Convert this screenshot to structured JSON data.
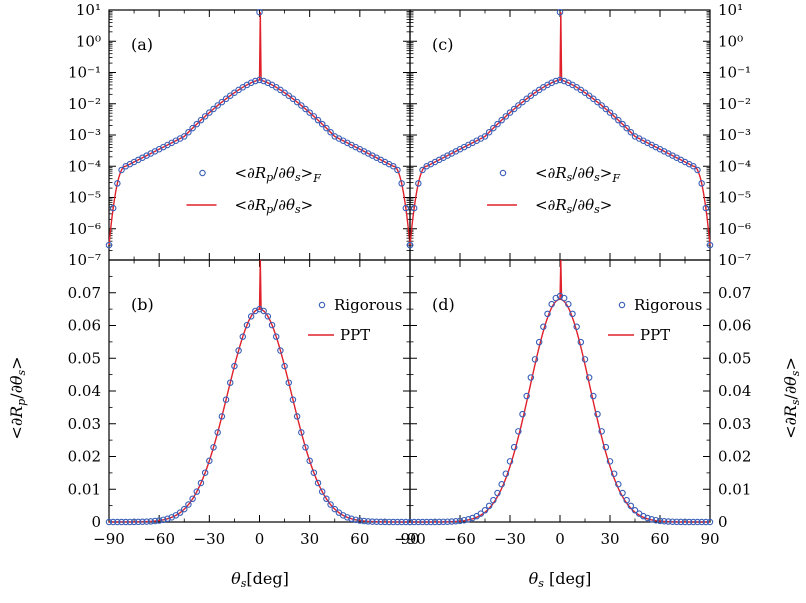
{
  "colors": {
    "rigorous": "#3a5fb8",
    "ppt": "#e0202a",
    "axis": "#000000"
  },
  "chart_data": [
    {
      "type": "scatter",
      "id": "a",
      "panel_label": "(a)",
      "yscale": "log",
      "xlim": [
        -90,
        90
      ],
      "ylim_exponents": [
        -7,
        1
      ],
      "ytick_labels": [
        "10¹",
        "10⁰",
        "10⁻¹",
        "10⁻²",
        "10⁻³",
        "10⁻⁴",
        "10⁻⁵",
        "10⁻⁶",
        "10⁻⁷"
      ],
      "legend": [
        "<∂Rp/∂θs>F",
        "<∂Rp/∂θs>"
      ],
      "legend_position": "lower-center",
      "specular": {
        "x": 0,
        "y": 8.5
      },
      "series": [
        {
          "name": "<∂Rp/∂θs>F",
          "kind": "markers",
          "model": "log-profile",
          "y_at_0": 0.058,
          "y_at_45": 0.0009,
          "y_at_80": 0.0001,
          "y_at_90": 3e-07
        },
        {
          "name": "<∂Rp/∂θs>",
          "kind": "line",
          "model": "log-profile",
          "y_at_0": 0.058,
          "y_at_45": 0.0009,
          "y_at_80": 0.0001,
          "y_at_90": 3e-07
        }
      ]
    },
    {
      "type": "scatter",
      "id": "b",
      "panel_label": "(b)",
      "yscale": "linear",
      "xlim": [
        -90,
        90
      ],
      "ylim": [
        0,
        0.08
      ],
      "yticks": [
        0,
        0.01,
        0.02,
        0.03,
        0.04,
        0.05,
        0.06,
        0.07
      ],
      "ytick_labels": [
        "0",
        "0.01",
        "0.02",
        "0.03",
        "0.04",
        "0.05",
        "0.06",
        "0.07"
      ],
      "xticks": [
        -90,
        -60,
        -30,
        0,
        30,
        60,
        90
      ],
      "xtick_labels": [
        "−90",
        "−60",
        "−30",
        "0",
        "30",
        "60",
        "90"
      ],
      "legend": [
        "Rigorous",
        "PPT"
      ],
      "legend_position": "upper-right",
      "specular": {
        "x": 0,
        "y": 0.08
      },
      "series": [
        {
          "name": "Rigorous",
          "kind": "markers",
          "model": "gaussian",
          "peak": 0.065,
          "sigma_deg": 19
        },
        {
          "name": "PPT",
          "kind": "line",
          "model": "gaussian",
          "peak": 0.065,
          "sigma_deg": 19
        }
      ]
    },
    {
      "type": "scatter",
      "id": "c",
      "panel_label": "(c)",
      "yscale": "log",
      "xlim": [
        -90,
        90
      ],
      "ylim_exponents": [
        -7,
        1
      ],
      "ytick_labels": [
        "10¹",
        "10⁰",
        "10⁻¹",
        "10⁻²",
        "10⁻³",
        "10⁻⁴",
        "10⁻⁵",
        "10⁻⁶",
        "10⁻⁷"
      ],
      "legend": [
        "<∂Rs/∂θs>F",
        "<∂Rs/∂θs>"
      ],
      "legend_position": "lower-center",
      "specular": {
        "x": 0,
        "y": 8.5
      },
      "series": [
        {
          "name": "<∂Rs/∂θs>F",
          "kind": "markers",
          "model": "log-profile",
          "y_at_0": 0.058,
          "y_at_45": 0.0009,
          "y_at_80": 0.0001,
          "y_at_90": 3e-07
        },
        {
          "name": "<∂Rs/∂θs>",
          "kind": "line",
          "model": "log-profile",
          "y_at_0": 0.058,
          "y_at_45": 0.0009,
          "y_at_80": 0.0001,
          "y_at_90": 3e-07
        }
      ]
    },
    {
      "type": "scatter",
      "id": "d",
      "panel_label": "(d)",
      "yscale": "linear",
      "xlim": [
        -90,
        90
      ],
      "ylim": [
        0,
        0.08
      ],
      "yticks": [
        0,
        0.01,
        0.02,
        0.03,
        0.04,
        0.05,
        0.06,
        0.07
      ],
      "ytick_labels": [
        "0",
        "0.01",
        "0.02",
        "0.03",
        "0.04",
        "0.05",
        "0.06",
        "0.07"
      ],
      "xticks": [
        -90,
        -60,
        -30,
        0,
        30,
        60,
        90
      ],
      "xtick_labels": [
        "−90",
        "−60",
        "−30",
        "0",
        "30",
        "60",
        "90"
      ],
      "legend": [
        "Rigorous",
        "PPT"
      ],
      "legend_position": "upper-right",
      "specular": {
        "x": 0,
        "y": 0.08
      },
      "series": [
        {
          "name": "Rigorous",
          "kind": "markers",
          "model": "gaussian",
          "peak": 0.069,
          "sigma_deg": 18.5
        },
        {
          "name": "PPT",
          "kind": "line",
          "model": "gaussian",
          "peak": 0.068,
          "sigma_deg": 18
        }
      ]
    }
  ],
  "axes": {
    "xlabel_left": "θs [deg]",
    "xlabel_right": "θs [deg]",
    "ylabel_left": "<∂Rp/∂θs>",
    "ylabel_right": "<∂Rs/∂θs>"
  }
}
